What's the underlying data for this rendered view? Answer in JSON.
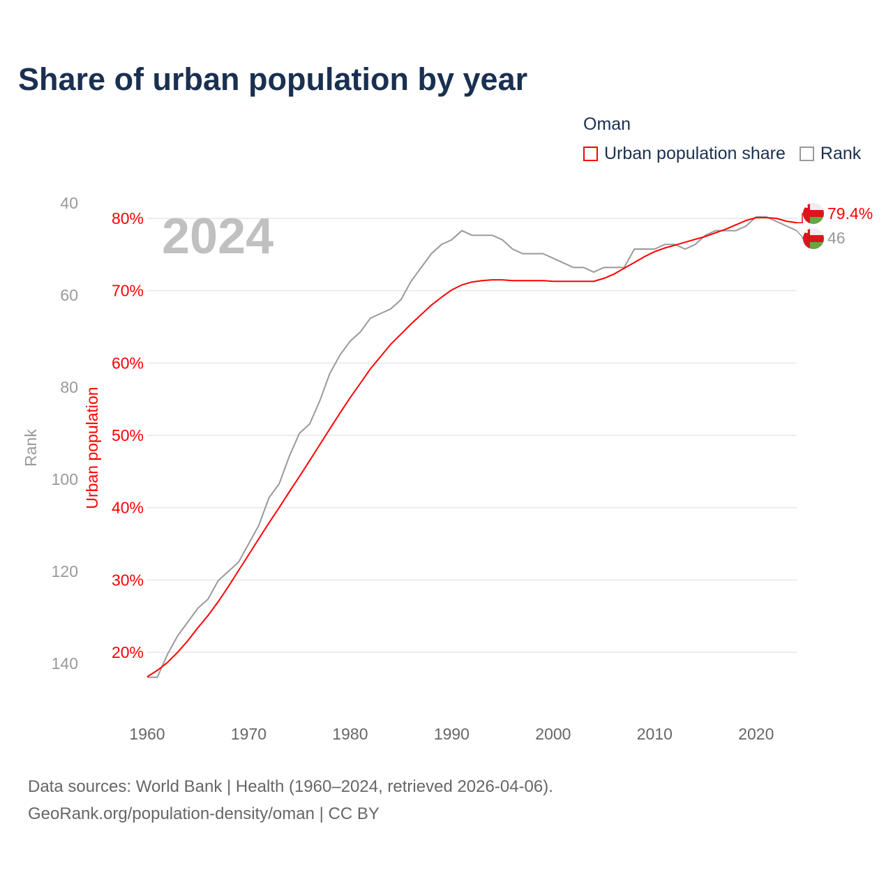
{
  "title": "Share of urban population by year",
  "legend": {
    "title": "Oman",
    "items": [
      {
        "label": "Urban population share",
        "color": "#ff0000"
      },
      {
        "label": "Rank",
        "color": "#999999"
      }
    ]
  },
  "footer": {
    "line1": "Data sources: World Bank | Health (1960–2024, retrieved 2026-04-06).",
    "line2": "GeoRank.org/population-density/oman | CC BY"
  },
  "chart_data": {
    "type": "line",
    "year_label": "2024",
    "x": [
      1960,
      1961,
      1962,
      1963,
      1964,
      1965,
      1966,
      1967,
      1968,
      1969,
      1970,
      1971,
      1972,
      1973,
      1974,
      1975,
      1976,
      1977,
      1978,
      1979,
      1980,
      1981,
      1982,
      1983,
      1984,
      1985,
      1986,
      1987,
      1988,
      1989,
      1990,
      1991,
      1992,
      1993,
      1994,
      1995,
      1996,
      1997,
      1998,
      1999,
      2000,
      2001,
      2002,
      2003,
      2004,
      2005,
      2006,
      2007,
      2008,
      2009,
      2010,
      2011,
      2012,
      2013,
      2014,
      2015,
      2016,
      2017,
      2018,
      2019,
      2020,
      2021,
      2022,
      2023,
      2024
    ],
    "xticks": [
      "1960",
      "1970",
      "1980",
      "1990",
      "2000",
      "2010",
      "2020"
    ],
    "xlim": [
      1960,
      2024
    ],
    "series": [
      {
        "name": "Urban population share",
        "axis": "left",
        "color": "#ff0000",
        "end_label": "79.4%",
        "values": [
          16.6,
          17.5,
          18.6,
          20.0,
          21.6,
          23.4,
          25.1,
          27.0,
          29.1,
          31.3,
          33.5,
          35.7,
          37.9,
          40.0,
          42.2,
          44.3,
          46.5,
          48.7,
          50.9,
          53.1,
          55.2,
          57.2,
          59.2,
          60.9,
          62.6,
          64.0,
          65.4,
          66.7,
          68.0,
          69.1,
          70.1,
          70.8,
          71.2,
          71.4,
          71.5,
          71.5,
          71.4,
          71.4,
          71.4,
          71.4,
          71.3,
          71.3,
          71.3,
          71.3,
          71.3,
          71.7,
          72.3,
          73.1,
          73.9,
          74.7,
          75.4,
          75.9,
          76.3,
          76.7,
          77.1,
          77.5,
          78.0,
          78.5,
          79.1,
          79.7,
          80.1,
          80.1,
          80.0,
          79.6,
          79.4
        ]
      },
      {
        "name": "Rank",
        "axis": "right",
        "color": "#999999",
        "end_label": "46",
        "values": [
          143,
          143,
          138,
          134,
          131,
          128,
          126,
          122,
          120,
          118,
          114,
          110,
          104,
          101,
          95,
          90,
          88,
          83,
          77,
          73,
          70,
          68,
          65,
          64,
          63,
          61,
          57,
          54,
          51,
          49,
          48,
          46,
          47,
          47,
          47,
          48,
          50,
          51,
          51,
          51,
          52,
          53,
          54,
          54,
          55,
          54,
          54,
          54,
          50,
          50,
          50,
          49,
          49,
          50,
          49,
          47,
          46,
          46,
          46,
          45,
          43,
          43,
          44,
          45,
          46
        ]
      }
    ],
    "left_axis": {
      "label": "Urban population",
      "ticks": [
        "20%",
        "30%",
        "40%",
        "50%",
        "60%",
        "70%",
        "80%"
      ],
      "tick_values": [
        20,
        30,
        40,
        50,
        60,
        70,
        80
      ]
    },
    "rank_axis": {
      "label": "Rank",
      "ticks": [
        "40",
        "60",
        "80",
        "100",
        "120",
        "140"
      ],
      "tick_values": [
        40,
        60,
        80,
        100,
        120,
        140
      ],
      "reversed": true
    },
    "grid": true,
    "legend_position": "top-right"
  }
}
